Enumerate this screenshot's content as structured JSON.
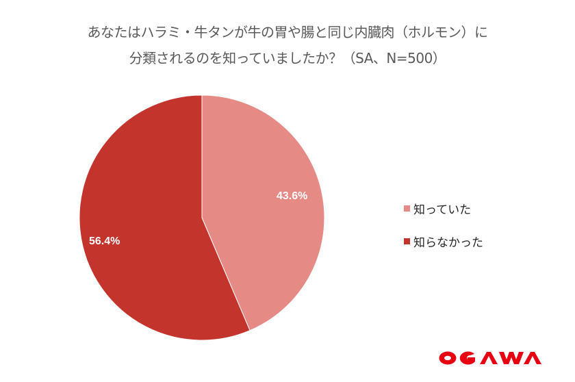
{
  "title": {
    "line1": "あなたはハラミ・牛タンが牛の胃や腸と同じ内臓肉（ホルモン）に",
    "line2": "分類されるのを知っていましたか？（SA、N=500）"
  },
  "chart_data": {
    "type": "pie",
    "title": "あなたはハラミ・牛タンが牛の胃や腸と同じ内臓肉（ホルモン）に分類されるのを知っていましたか？（SA、N=500）",
    "categories": [
      "知っていた",
      "知らなかった"
    ],
    "values": [
      43.6,
      56.4
    ],
    "unit": "%",
    "data_labels": [
      "43.6%",
      "56.4%"
    ],
    "colors": [
      "#E58A85",
      "#C3342D"
    ],
    "start_angle": "12 o'clock, clockwise",
    "legend_position": "right",
    "sample_size": 500
  },
  "legend": {
    "items": [
      {
        "label": "知っていた",
        "color": "#E58A85"
      },
      {
        "label": "知らなかった",
        "color": "#C3342D"
      }
    ]
  },
  "labels": {
    "slice1": "43.6%",
    "slice2": "56.4%"
  },
  "logo": {
    "text": "OGAWA",
    "color": "#E60012"
  }
}
